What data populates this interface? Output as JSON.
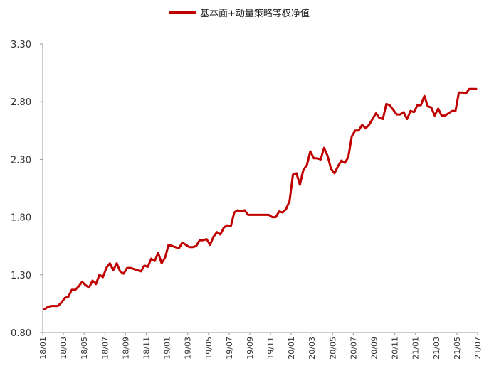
{
  "chart_data": {
    "type": "line",
    "legend": {
      "position": "top-center"
    },
    "series": [
      {
        "name": "基本面+动量策略等权净值",
        "color": "#c00000",
        "points": [
          [
            "18/01",
            1.0
          ],
          [
            "18/01",
            1.02
          ],
          [
            "18/02",
            1.03
          ],
          [
            "18/02",
            1.03
          ],
          [
            "18/02",
            1.03
          ],
          [
            "18/03",
            1.06
          ],
          [
            "18/03",
            1.1
          ],
          [
            "18/03",
            1.11
          ],
          [
            "18/04",
            1.17
          ],
          [
            "18/04",
            1.17
          ],
          [
            "18/04",
            1.2
          ],
          [
            "18/05",
            1.24
          ],
          [
            "18/05",
            1.21
          ],
          [
            "18/05",
            1.19
          ],
          [
            "18/06",
            1.25
          ],
          [
            "18/06",
            1.22
          ],
          [
            "18/06",
            1.3
          ],
          [
            "18/07",
            1.28
          ],
          [
            "18/07",
            1.36
          ],
          [
            "18/07",
            1.4
          ],
          [
            "18/07",
            1.34
          ],
          [
            "18/08",
            1.4
          ],
          [
            "18/08",
            1.33
          ],
          [
            "18/08",
            1.31
          ],
          [
            "18/09",
            1.36
          ],
          [
            "18/09",
            1.36
          ],
          [
            "18/10",
            1.35
          ],
          [
            "18/10",
            1.34
          ],
          [
            "18/10",
            1.33
          ],
          [
            "18/11",
            1.38
          ],
          [
            "18/11",
            1.37
          ],
          [
            "18/11",
            1.44
          ],
          [
            "18/12",
            1.42
          ],
          [
            "18/12",
            1.49
          ],
          [
            "18/12",
            1.4
          ],
          [
            "19/01",
            1.45
          ],
          [
            "19/01",
            1.56
          ],
          [
            "19/01",
            1.55
          ],
          [
            "19/02",
            1.54
          ],
          [
            "19/02",
            1.53
          ],
          [
            "19/02",
            1.58
          ],
          [
            "19/03",
            1.56
          ],
          [
            "19/03",
            1.54
          ],
          [
            "19/03",
            1.54
          ],
          [
            "19/04",
            1.55
          ],
          [
            "19/04",
            1.6
          ],
          [
            "19/04",
            1.6
          ],
          [
            "19/05",
            1.61
          ],
          [
            "19/05",
            1.56
          ],
          [
            "19/05",
            1.63
          ],
          [
            "19/06",
            1.67
          ],
          [
            "19/06",
            1.65
          ],
          [
            "19/06",
            1.71
          ],
          [
            "19/07",
            1.73
          ],
          [
            "19/07",
            1.72
          ],
          [
            "19/07",
            1.84
          ],
          [
            "19/08",
            1.86
          ],
          [
            "19/08",
            1.85
          ],
          [
            "19/08",
            1.86
          ],
          [
            "19/09",
            1.82
          ],
          [
            "19/09",
            1.82
          ],
          [
            "19/10",
            1.82
          ],
          [
            "19/10",
            1.82
          ],
          [
            "19/10",
            1.82
          ],
          [
            "19/11",
            1.82
          ],
          [
            "19/11",
            1.82
          ],
          [
            "19/11",
            1.8
          ],
          [
            "19/12",
            1.8
          ],
          [
            "19/12",
            1.85
          ],
          [
            "19/12",
            1.84
          ],
          [
            "20/01",
            1.87
          ],
          [
            "20/01",
            1.94
          ],
          [
            "20/01",
            2.17
          ],
          [
            "20/02",
            2.18
          ],
          [
            "20/02",
            2.08
          ],
          [
            "20/02",
            2.21
          ],
          [
            "20/03",
            2.25
          ],
          [
            "20/03",
            2.37
          ],
          [
            "20/03",
            2.31
          ],
          [
            "20/04",
            2.31
          ],
          [
            "20/04",
            2.3
          ],
          [
            "20/04",
            2.4
          ],
          [
            "20/05",
            2.33
          ],
          [
            "20/05",
            2.22
          ],
          [
            "20/05",
            2.18
          ],
          [
            "20/06",
            2.24
          ],
          [
            "20/06",
            2.29
          ],
          [
            "20/06",
            2.27
          ],
          [
            "20/07",
            2.32
          ],
          [
            "20/07",
            2.5
          ],
          [
            "20/07",
            2.55
          ],
          [
            "20/08",
            2.55
          ],
          [
            "20/08",
            2.6
          ],
          [
            "20/08",
            2.57
          ],
          [
            "20/09",
            2.6
          ],
          [
            "20/09",
            2.65
          ],
          [
            "20/09",
            2.7
          ],
          [
            "20/10",
            2.66
          ],
          [
            "20/10",
            2.65
          ],
          [
            "20/10",
            2.78
          ],
          [
            "20/11",
            2.77
          ],
          [
            "20/11",
            2.73
          ],
          [
            "20/11",
            2.69
          ],
          [
            "20/12",
            2.69
          ],
          [
            "20/12",
            2.71
          ],
          [
            "20/12",
            2.65
          ],
          [
            "21/01",
            2.72
          ],
          [
            "21/01",
            2.71
          ],
          [
            "21/01",
            2.77
          ],
          [
            "21/02",
            2.77
          ],
          [
            "21/02",
            2.85
          ],
          [
            "21/02",
            2.76
          ],
          [
            "21/03",
            2.75
          ],
          [
            "21/03",
            2.68
          ],
          [
            "21/03",
            2.74
          ],
          [
            "21/04",
            2.68
          ],
          [
            "21/04",
            2.68
          ],
          [
            "21/04",
            2.7
          ],
          [
            "21/05",
            2.72
          ],
          [
            "21/05",
            2.72
          ],
          [
            "21/05",
            2.88
          ],
          [
            "21/06",
            2.88
          ],
          [
            "21/06",
            2.87
          ],
          [
            "21/06",
            2.91
          ],
          [
            "21/07",
            2.91
          ],
          [
            "21/07",
            2.91
          ]
        ]
      }
    ],
    "x_tick_labels": [
      "18/01",
      "18/03",
      "18/05",
      "18/07",
      "18/09",
      "18/11",
      "19/01",
      "19/03",
      "19/05",
      "19/07",
      "19/09",
      "19/11",
      "20/01",
      "20/03",
      "20/05",
      "20/07",
      "20/09",
      "20/11",
      "21/01",
      "21/03",
      "21/05",
      "21/07"
    ],
    "y_tick_labels": [
      "0.80",
      "1.30",
      "1.80",
      "2.30",
      "2.80",
      "3.30"
    ],
    "ylim": [
      0.8,
      3.3
    ],
    "grid": false,
    "title": "",
    "xlabel": "",
    "ylabel": ""
  }
}
